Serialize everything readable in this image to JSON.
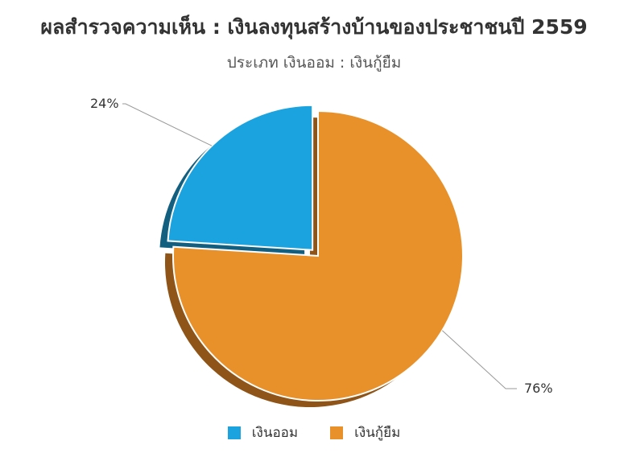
{
  "chart_data": {
    "type": "pie",
    "title": "ผลสำรวจความเห็น : เงินลงทุนสร้างบ้านของประชาชนปี 2559",
    "subtitle": "ประเภท เงินออม : เงินกู้ยืม",
    "legend_position": "bottom-center",
    "slices": [
      {
        "name": "เงินออม",
        "value": 24,
        "label": "24%",
        "color": "#1ba3df",
        "side_color": "#135f80"
      },
      {
        "name": "เงินกู้ยืม",
        "value": 76,
        "label": "76%",
        "color": "#e8912a",
        "side_color": "#8e5418"
      }
    ]
  }
}
